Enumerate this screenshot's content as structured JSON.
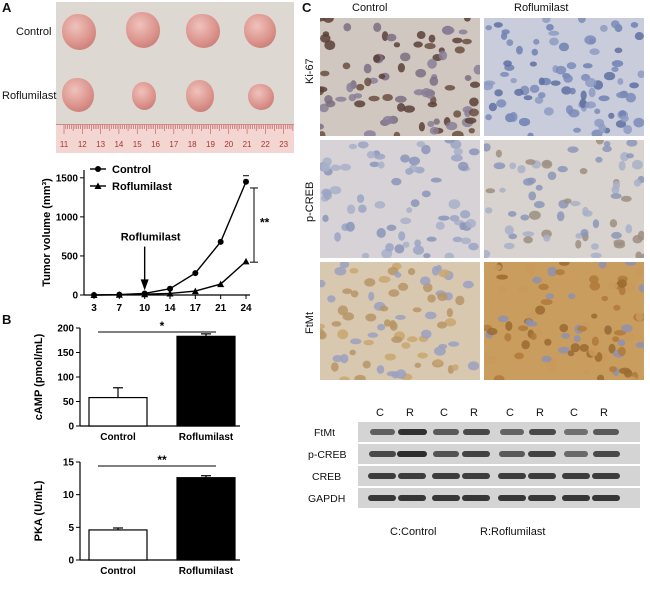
{
  "panelA": {
    "letter": "A",
    "row_labels": [
      "Control",
      "Roflumilast"
    ],
    "ruler_ticks": [
      "11",
      "12",
      "13",
      "14",
      "15",
      "16",
      "17",
      "18",
      "19",
      "20",
      "21",
      "22",
      "23"
    ],
    "chart": {
      "ylabel": "Tumor volume (mm³)",
      "legend": [
        "Control",
        "Roflumilast"
      ],
      "arrow_label": "Roflumilast",
      "significance": "**",
      "x_ticks": [
        "3",
        "7",
        "10",
        "14",
        "17",
        "21",
        "24"
      ],
      "y_ticks": [
        "0",
        "500",
        "1000",
        "1500"
      ]
    }
  },
  "panelB": {
    "letter": "B",
    "top_chart": {
      "ylabel": "cAMP (pmol/mL)",
      "y_ticks": [
        "0",
        "50",
        "100",
        "150",
        "200"
      ],
      "significance": "*",
      "categories": [
        "Control",
        "Roflumilast"
      ]
    },
    "bottom_chart": {
      "ylabel": "PKA (U/mL)",
      "y_ticks": [
        "0",
        "5",
        "10",
        "15"
      ],
      "significance": "**",
      "categories": [
        "Control",
        "Roflumilast"
      ]
    }
  },
  "panelC": {
    "letter": "C",
    "columns": [
      "Control",
      "Roflumilast"
    ],
    "rows": [
      "Ki-67",
      "p-CREB",
      "FtMt"
    ],
    "wb_lanes": [
      "C",
      "R",
      "C",
      "R",
      "C",
      "R",
      "C",
      "R"
    ],
    "wb_rows": [
      "FtMt",
      "p-CREB",
      "CREB",
      "GAPDH"
    ],
    "wb_band_intensity": {
      "FtMt": [
        0.5,
        0.9,
        0.55,
        0.7,
        0.45,
        0.7,
        0.35,
        0.55
      ],
      "p-CREB": [
        0.7,
        0.95,
        0.6,
        0.75,
        0.55,
        0.75,
        0.4,
        0.7
      ],
      "CREB": [
        0.8,
        0.8,
        0.8,
        0.8,
        0.8,
        0.8,
        0.8,
        0.8
      ],
      "GAPDH": [
        0.85,
        0.85,
        0.85,
        0.85,
        0.85,
        0.85,
        0.85,
        0.85
      ]
    },
    "legend_c": "C:Control",
    "legend_r": "R:Roflumilast"
  },
  "chart_data": [
    {
      "type": "line",
      "x": [
        3,
        7,
        10,
        14,
        17,
        21,
        24
      ],
      "series": [
        {
          "name": "Control",
          "values": [
            0,
            5,
            20,
            80,
            280,
            680,
            1450
          ]
        },
        {
          "name": "Roflumilast",
          "values": [
            0,
            3,
            10,
            20,
            50,
            140,
            430
          ]
        }
      ],
      "ylabel": "Tumor volume (mm³)",
      "ylim": [
        0,
        1600
      ],
      "annotations": [
        "Roflumilast",
        "**"
      ]
    },
    {
      "type": "bar",
      "categories": [
        "Control",
        "Roflumilast"
      ],
      "values": [
        58,
        183
      ],
      "errors": [
        20,
        5
      ],
      "ylabel": "cAMP (pmol/mL)",
      "ylim": [
        0,
        200
      ],
      "annotations": [
        "*"
      ]
    },
    {
      "type": "bar",
      "categories": [
        "Control",
        "Roflumilast"
      ],
      "values": [
        4.6,
        12.6
      ],
      "errors": [
        0.3,
        0.3
      ],
      "ylabel": "PKA (U/mL)",
      "ylim": [
        0,
        15
      ],
      "annotations": [
        "**"
      ]
    }
  ]
}
